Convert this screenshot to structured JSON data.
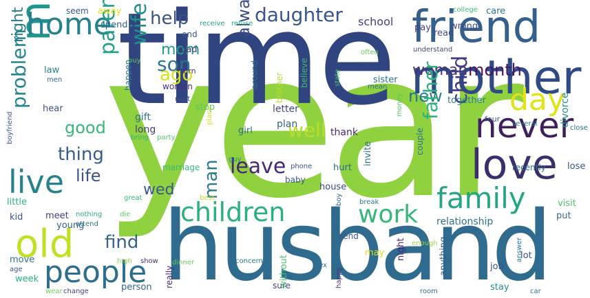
{
  "words": [
    {
      "text": "year",
      "color": "#8fd13f"
    },
    {
      "text": "time",
      "color": "#30447f"
    },
    {
      "text": "husband",
      "color": "#2e6b8e"
    },
    {
      "text": "mother",
      "color": "#2f4b85"
    },
    {
      "text": "friend",
      "color": "#355f8d"
    },
    {
      "text": "love",
      "color": "#3b2e6b"
    },
    {
      "text": "marry",
      "color": "#1f958b"
    },
    {
      "text": "children",
      "color": "#2cb17e"
    },
    {
      "text": "family",
      "color": "#25a584"
    },
    {
      "text": "work",
      "color": "#35b779"
    },
    {
      "text": "never",
      "color": "#3f1f5e"
    },
    {
      "text": "live",
      "color": "#27808e"
    },
    {
      "text": "old",
      "color": "#c2df23"
    },
    {
      "text": "people",
      "color": "#2d6e8e"
    },
    {
      "text": "home",
      "color": "#26818e"
    },
    {
      "text": "day",
      "color": "#dfe318"
    },
    {
      "text": "daughter",
      "color": "#3a548c"
    },
    {
      "text": "help",
      "color": "#3b528b"
    },
    {
      "text": "son",
      "color": "#2a768e"
    },
    {
      "text": "mom",
      "color": "#1fa187"
    },
    {
      "text": "ago",
      "color": "#d8e219"
    },
    {
      "text": "wife",
      "color": "#21908d"
    },
    {
      "text": "parent",
      "color": "#1f9e89"
    },
    {
      "text": "right",
      "color": "#297b8e"
    },
    {
      "text": "problem",
      "color": "#25858e"
    },
    {
      "text": "always",
      "color": "#3e4a89"
    },
    {
      "text": "woman",
      "color": "#46337e"
    },
    {
      "text": "month",
      "color": "#471365"
    },
    {
      "text": "new",
      "color": "#2a788e"
    },
    {
      "text": "good",
      "color": "#37b878"
    },
    {
      "text": "thing",
      "color": "#365c8d"
    },
    {
      "text": "life",
      "color": "#3b528b"
    },
    {
      "text": "well",
      "color": "#b8de29"
    },
    {
      "text": "leave",
      "color": "#482677"
    },
    {
      "text": "child",
      "color": "#443983"
    },
    {
      "text": "father",
      "color": "#2db27d"
    },
    {
      "text": "wed",
      "color": "#38588c"
    },
    {
      "text": "find",
      "color": "#34618d"
    },
    {
      "text": "man",
      "color": "#29798e"
    },
    {
      "text": "school",
      "color": "#433e85"
    },
    {
      "text": "seem",
      "color": "#38598c"
    },
    {
      "text": "advice",
      "color": "#8fd744"
    },
    {
      "text": "away",
      "color": "#dfe318"
    },
    {
      "text": "spend",
      "color": "#33638d"
    },
    {
      "text": "end",
      "color": "#39568c"
    },
    {
      "text": "receive",
      "color": "#20a486"
    },
    {
      "text": "refuse",
      "color": "#2ab07f"
    },
    {
      "text": "dad",
      "color": "#453781"
    },
    {
      "text": "buy",
      "color": "#5ec962"
    },
    {
      "text": "law",
      "color": "#26828e"
    },
    {
      "text": "men",
      "color": "#31688e"
    },
    {
      "text": "women",
      "color": "#472c7a"
    },
    {
      "text": "wrong",
      "color": "#3e4989"
    },
    {
      "text": "care",
      "color": "#2c738e"
    },
    {
      "text": "college",
      "color": "#40bd72"
    },
    {
      "text": "pay",
      "color": "#423f85"
    },
    {
      "text": "read",
      "color": "#3e4c8a"
    },
    {
      "text": "often",
      "color": "#6ccd5a"
    },
    {
      "text": "understand",
      "color": "#414487"
    },
    {
      "text": "turn",
      "color": "#46327e"
    },
    {
      "text": "happen",
      "color": "#2a788e"
    },
    {
      "text": "around",
      "color": "#2e6e8e"
    },
    {
      "text": "brother",
      "color": "#b5de2b"
    },
    {
      "text": "believe",
      "color": "#3dbc74"
    },
    {
      "text": "state",
      "color": "#4ac16d"
    },
    {
      "text": "sister",
      "color": "#2c728e"
    },
    {
      "text": "mean",
      "color": "#2f6c8e"
    },
    {
      "text": "next",
      "color": "#3d4e8a"
    },
    {
      "text": "gift",
      "color": "#2c728e"
    },
    {
      "text": "stop",
      "color": "#56c667"
    },
    {
      "text": "together",
      "color": "#287d8e"
    },
    {
      "text": "letter",
      "color": "#3f4788"
    },
    {
      "text": "hear",
      "color": "#3b528b"
    },
    {
      "text": "long",
      "color": "#433d84"
    },
    {
      "text": "plan",
      "color": "#33628d"
    },
    {
      "text": "thank",
      "color": "#482979"
    },
    {
      "text": "divorce",
      "color": "#21918c"
    },
    {
      "text": "money",
      "color": "#50c46a"
    },
    {
      "text": "four",
      "color": "#375a8c"
    },
    {
      "text": "several",
      "color": "#2d718e"
    },
    {
      "text": "close",
      "color": "#2b748e"
    },
    {
      "text": "lose",
      "color": "#3b528b"
    },
    {
      "text": "recently",
      "color": "#2d708e"
    },
    {
      "text": "girl",
      "color": "#2d708e"
    },
    {
      "text": "bring",
      "color": "#2fb47c"
    },
    {
      "text": "party",
      "color": "#50c46a"
    },
    {
      "text": "place",
      "color": "#d2e21b"
    },
    {
      "text": "boyfriend",
      "color": "#39568c"
    },
    {
      "text": "marriage",
      "color": "#37b878"
    },
    {
      "text": "phone",
      "color": "#3b528b"
    },
    {
      "text": "guy",
      "color": "#23888e"
    },
    {
      "text": "hurt",
      "color": "#2f6b8e"
    },
    {
      "text": "invite",
      "color": "#2f6c8e"
    },
    {
      "text": "couple",
      "color": "#2e6e8e"
    },
    {
      "text": "house",
      "color": "#3e4a89"
    },
    {
      "text": "baby",
      "color": "#3a548c"
    },
    {
      "text": "best",
      "color": "#c2df23"
    },
    {
      "text": "break",
      "color": "#2a778e"
    },
    {
      "text": "relationship",
      "color": "#2c718e"
    },
    {
      "text": "visit",
      "color": "#4ac16d"
    },
    {
      "text": "little",
      "color": "#2db27d"
    },
    {
      "text": "great",
      "color": "#3aba76"
    },
    {
      "text": "kid",
      "color": "#3b528b"
    },
    {
      "text": "meet",
      "color": "#453882"
    },
    {
      "text": "nothing",
      "color": "#2ab07f"
    },
    {
      "text": "die",
      "color": "#5cc863"
    },
    {
      "text": "young",
      "color": "#34608d"
    },
    {
      "text": "attend",
      "color": "#2b758e"
    },
    {
      "text": "boy",
      "color": "#31678e"
    },
    {
      "text": "put",
      "color": "#2f6b8e"
    },
    {
      "text": "send",
      "color": "#3b528b"
    },
    {
      "text": "night",
      "color": "#482374"
    },
    {
      "text": "question",
      "color": "#2c728e"
    },
    {
      "text": "enough",
      "color": "#9bd93c"
    },
    {
      "text": "may",
      "color": "#d5e21a"
    },
    {
      "text": "answer",
      "color": "#2a788e"
    },
    {
      "text": "lot",
      "color": "#3c4f8a"
    },
    {
      "text": "move",
      "color": "#2c728e"
    },
    {
      "text": "age",
      "color": "#3b528b"
    },
    {
      "text": "high",
      "color": "#8fd744"
    },
    {
      "text": "show",
      "color": "#472d7b"
    },
    {
      "text": "dinner",
      "color": "#67cc5c"
    },
    {
      "text": "concern",
      "color": "#2c738e"
    },
    {
      "text": "sex",
      "color": "#2e6e8e"
    },
    {
      "text": "anything",
      "color": "#33638d"
    },
    {
      "text": "job",
      "color": "#3b528b"
    },
    {
      "text": "week",
      "color": "#2db27d"
    },
    {
      "text": "person",
      "color": "#33638d"
    },
    {
      "text": "really",
      "color": "#482878"
    },
    {
      "text": "sure",
      "color": "#423f85"
    },
    {
      "text": "without",
      "color": "#4ac16d"
    },
    {
      "text": "happy",
      "color": "#46337e"
    },
    {
      "text": "room",
      "color": "#2d718e"
    },
    {
      "text": "stay",
      "color": "#21918c"
    },
    {
      "text": "car",
      "color": "#2c728e"
    },
    {
      "text": "wear",
      "color": "#6ccd5a"
    },
    {
      "text": "change",
      "color": "#453781"
    }
  ]
}
